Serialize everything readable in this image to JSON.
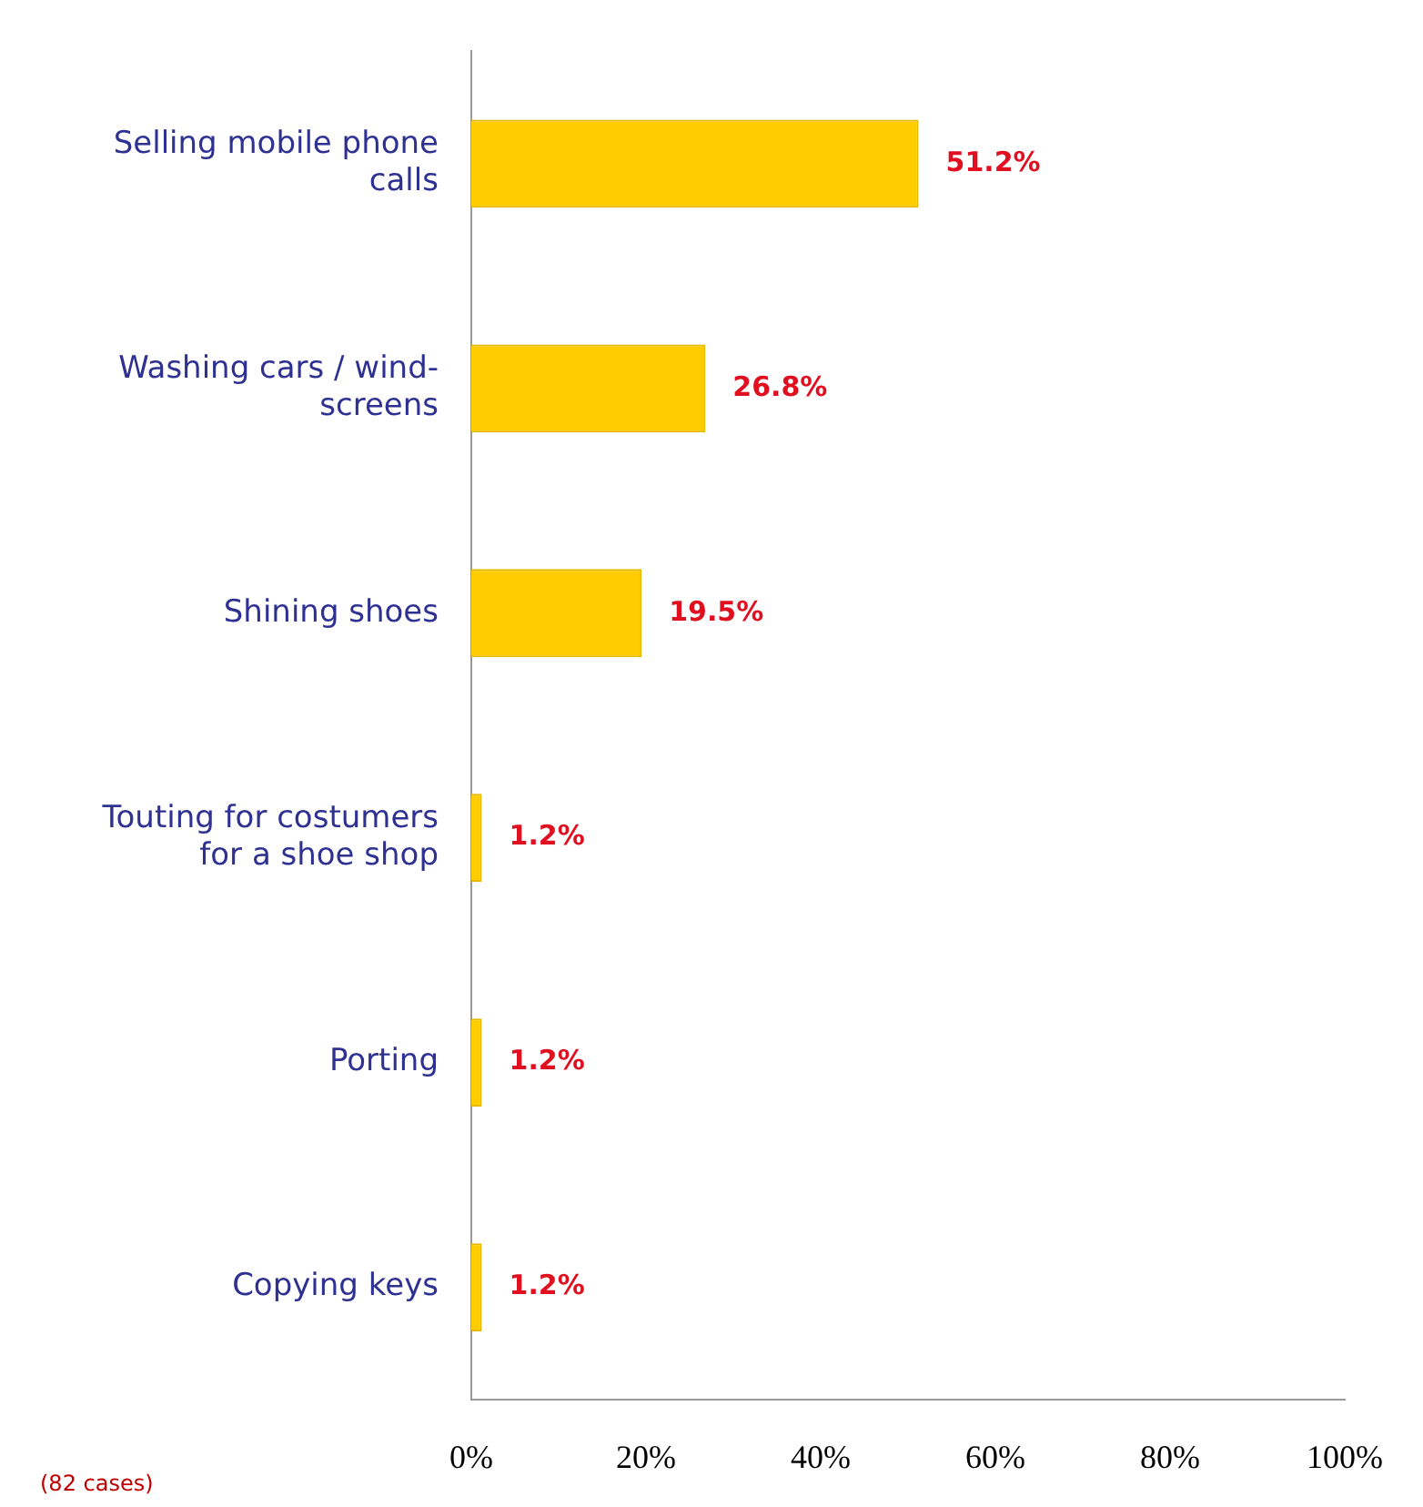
{
  "chart_data": {
    "type": "bar",
    "orientation": "horizontal",
    "categories": [
      "Selling mobile phone calls",
      "Washing cars / wind-screens",
      "Shining shoes",
      "Touting for costumers for a shoe shop",
      "Porting",
      "Copying keys"
    ],
    "values": [
      51.2,
      26.8,
      19.5,
      1.2,
      1.2,
      1.2
    ],
    "value_labels": [
      "51.2%",
      "26.8%",
      "19.5%",
      "1.2%",
      "1.2%",
      "1.2%"
    ],
    "color": "#ffcc00",
    "xlim": [
      0,
      100
    ],
    "xticks": [
      {
        "value": 0,
        "label": "0%"
      },
      {
        "value": 20,
        "label": "20%"
      },
      {
        "value": 40,
        "label": "40%"
      },
      {
        "value": 60,
        "label": "60%"
      },
      {
        "value": 80,
        "label": "80%"
      },
      {
        "value": 100,
        "label": "100%"
      }
    ],
    "annotations": [
      "(82 cases)"
    ],
    "grid": false,
    "legend": false
  }
}
